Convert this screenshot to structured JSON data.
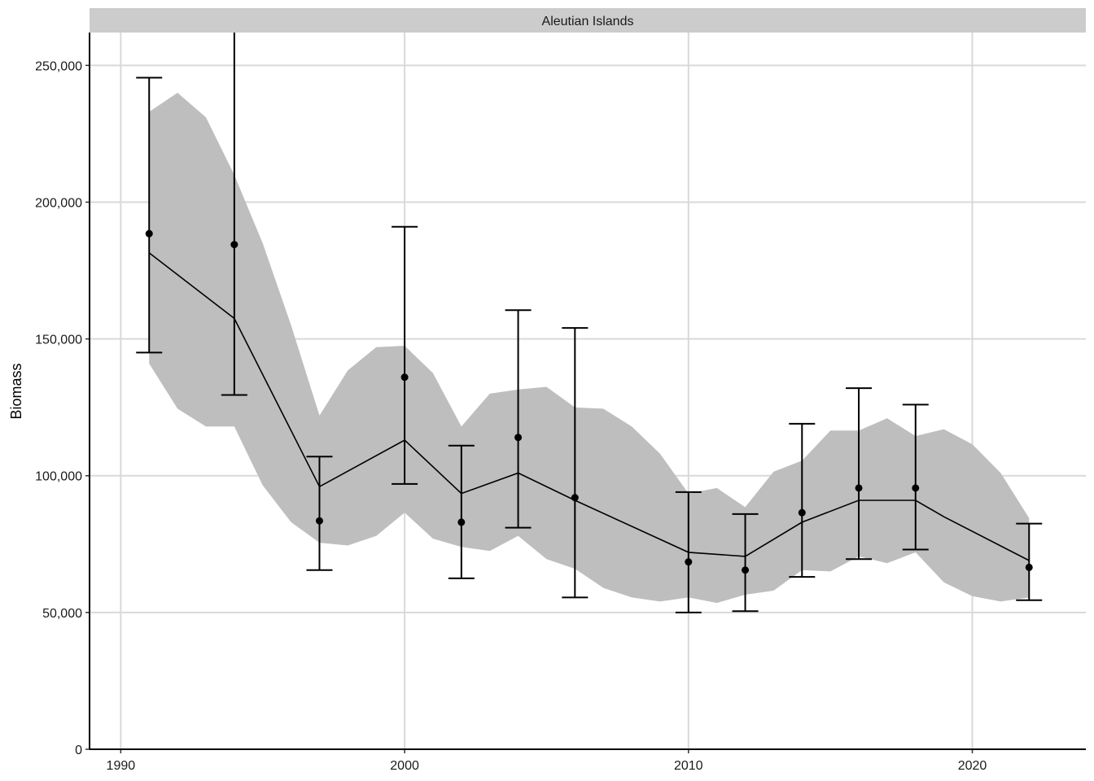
{
  "chart_data": {
    "type": "line",
    "facet_label": "Aleutian Islands",
    "xlabel": "",
    "ylabel": "Biomass",
    "xlim": [
      1988.9,
      2024
    ],
    "ylim": [
      0,
      262000
    ],
    "x_ticks": [
      1990,
      2000,
      2010,
      2020
    ],
    "x_tick_labels": [
      "1990",
      "2000",
      "2010",
      "2020"
    ],
    "y_ticks": [
      0,
      50000,
      100000,
      150000,
      200000,
      250000
    ],
    "y_tick_labels": [
      "0",
      "50,000",
      "100,000",
      "150,000",
      "200,000",
      "250,000"
    ],
    "grid": true,
    "colors": {
      "ribbon": "#bebebe",
      "line": "#000000",
      "points": "#000000",
      "grid": "#d9d9d9",
      "strip": "#cccccc"
    },
    "model_fit": {
      "x": [
        1991,
        1994,
        1997,
        2000,
        2002,
        2004,
        2006,
        2010,
        2012,
        2014,
        2016,
        2018,
        2019,
        2022
      ],
      "y": [
        181500,
        157500,
        96000,
        113000,
        93500,
        101000,
        91000,
        72000,
        70500,
        83000,
        91000,
        91000,
        85000,
        69000
      ]
    },
    "confidence_band": {
      "x": [
        1991,
        1992,
        1993,
        1994,
        1995,
        1996,
        1997,
        1998,
        1999,
        2000,
        2001,
        2002,
        2003,
        2004,
        2005,
        2006,
        2007,
        2008,
        2009,
        2010,
        2011,
        2012,
        2013,
        2014,
        2015,
        2016,
        2017,
        2018,
        2019,
        2020,
        2021,
        2022
      ],
      "lower": [
        141000,
        124500,
        118000,
        118000,
        96500,
        83000,
        75500,
        74500,
        78000,
        86500,
        77000,
        74000,
        72500,
        78000,
        69500,
        66000,
        59000,
        55500,
        54000,
        55500,
        53500,
        56500,
        58000,
        65500,
        65000,
        70500,
        68000,
        72000,
        61000,
        56000,
        54000,
        55500
      ],
      "upper": [
        233000,
        240000,
        231000,
        210000,
        185000,
        155000,
        122000,
        138500,
        147000,
        147500,
        137500,
        118000,
        130000,
        131500,
        132500,
        125000,
        124500,
        118000,
        108000,
        93500,
        95500,
        88500,
        101500,
        105500,
        116500,
        116500,
        121000,
        114500,
        117000,
        111500,
        101000,
        84500
      ]
    },
    "observations": [
      {
        "x": 1991,
        "y": 188500,
        "lo": 145000,
        "hi": 245500
      },
      {
        "x": 1994,
        "y": 184500,
        "lo": 129500,
        "hi": 262000
      },
      {
        "x": 1997,
        "y": 83500,
        "lo": 65500,
        "hi": 107000
      },
      {
        "x": 2000,
        "y": 136000,
        "lo": 97000,
        "hi": 191000
      },
      {
        "x": 2002,
        "y": 83000,
        "lo": 62500,
        "hi": 111000
      },
      {
        "x": 2004,
        "y": 114000,
        "lo": 81000,
        "hi": 160500
      },
      {
        "x": 2006,
        "y": 92000,
        "lo": 55500,
        "hi": 154000
      },
      {
        "x": 2010,
        "y": 68500,
        "lo": 50000,
        "hi": 94000
      },
      {
        "x": 2012,
        "y": 65500,
        "lo": 50500,
        "hi": 86000
      },
      {
        "x": 2014,
        "y": 86500,
        "lo": 63000,
        "hi": 119000
      },
      {
        "x": 2016,
        "y": 95500,
        "lo": 69500,
        "hi": 132000
      },
      {
        "x": 2018,
        "y": 95500,
        "lo": 73000,
        "hi": 126000
      },
      {
        "x": 2022,
        "y": 66500,
        "lo": 54500,
        "hi": 82500
      }
    ]
  }
}
